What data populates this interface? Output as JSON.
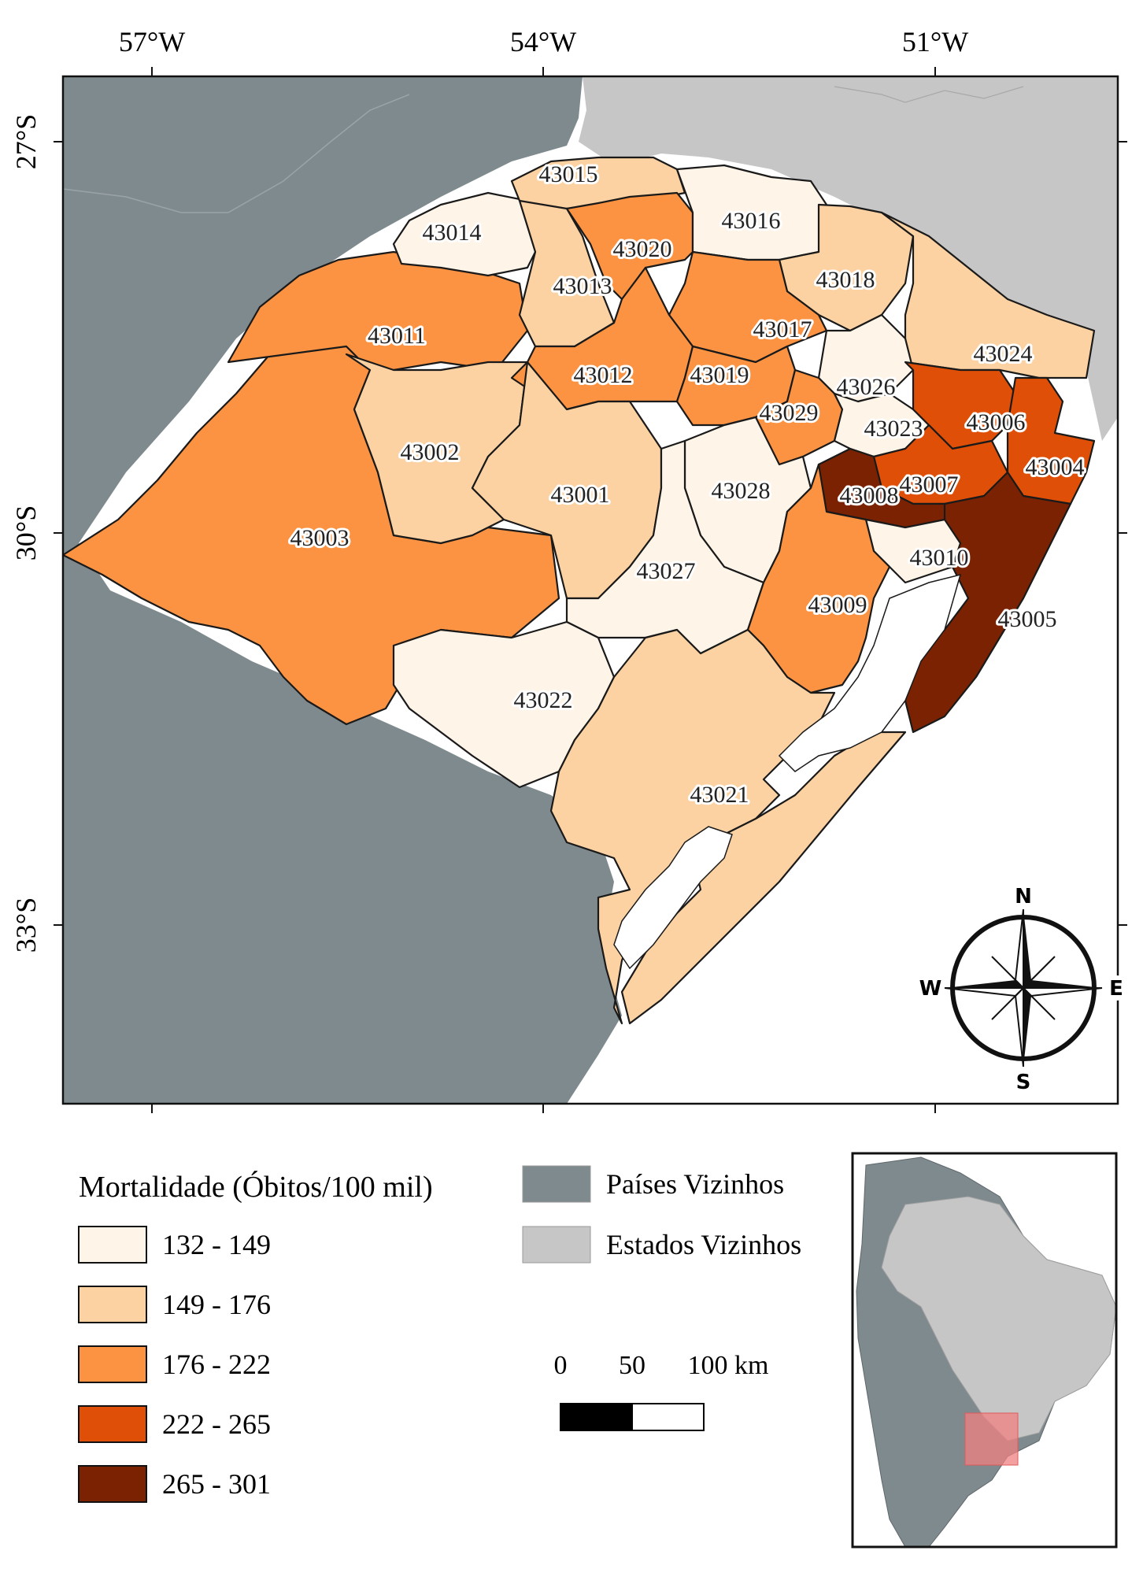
{
  "map": {
    "lon_ticks": [
      "57°W",
      "54°W",
      "51°W"
    ],
    "lat_ticks": [
      "27°S",
      "30°S",
      "33°S"
    ],
    "colors": {
      "neighbor_countries": "#7f8a8f",
      "neighbor_states": "#c6c6c6",
      "water": "#ffffff",
      "border": "#1a1a1a"
    },
    "regions": [
      {
        "id": "43001",
        "class": 2
      },
      {
        "id": "43002",
        "class": 2
      },
      {
        "id": "43003",
        "class": 3
      },
      {
        "id": "43004",
        "class": 4
      },
      {
        "id": "43005",
        "class": 5
      },
      {
        "id": "43006",
        "class": 4
      },
      {
        "id": "43007",
        "class": 4
      },
      {
        "id": "43008",
        "class": 5
      },
      {
        "id": "43009",
        "class": 3
      },
      {
        "id": "43010",
        "class": 1
      },
      {
        "id": "43011",
        "class": 3
      },
      {
        "id": "43012",
        "class": 3
      },
      {
        "id": "43013",
        "class": 2
      },
      {
        "id": "43014",
        "class": 1
      },
      {
        "id": "43015",
        "class": 2
      },
      {
        "id": "43016",
        "class": 1
      },
      {
        "id": "43017",
        "class": 3
      },
      {
        "id": "43018",
        "class": 2
      },
      {
        "id": "43019",
        "class": 3
      },
      {
        "id": "43020",
        "class": 3
      },
      {
        "id": "43021",
        "class": 2
      },
      {
        "id": "43022",
        "class": 1
      },
      {
        "id": "43023",
        "class": 1
      },
      {
        "id": "43024",
        "class": 2
      },
      {
        "id": "43026",
        "class": 1
      },
      {
        "id": "43027",
        "class": 1
      },
      {
        "id": "43028",
        "class": 1
      },
      {
        "id": "43029",
        "class": 3
      }
    ],
    "compass": {
      "n": "N",
      "s": "S",
      "e": "E",
      "w": "W"
    }
  },
  "legend": {
    "title": "Mortalidade (Óbitos/100 mil)",
    "classes": [
      {
        "label": "132 - 149",
        "color": "#fef4e8"
      },
      {
        "label": "149 - 176",
        "color": "#fcd2a3"
      },
      {
        "label": "176 - 222",
        "color": "#fb9343"
      },
      {
        "label": "222 - 265",
        "color": "#df4f07"
      },
      {
        "label": "265 - 301",
        "color": "#7b2203"
      }
    ],
    "layers": [
      {
        "label": "Países Vizinhos",
        "color": "#7f8a8f"
      },
      {
        "label": "Estados Vizinhos",
        "color": "#c6c6c6"
      }
    ]
  },
  "scale_bar": {
    "labels": [
      "0",
      "50",
      "100 km"
    ]
  }
}
